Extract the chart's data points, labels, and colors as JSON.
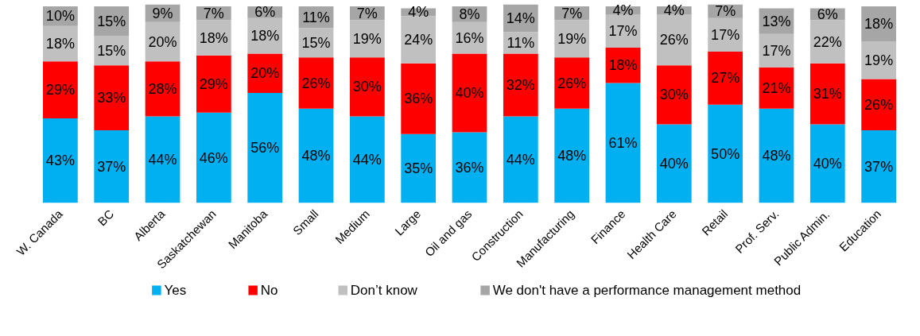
{
  "chart_data": {
    "type": "bar",
    "stacked": true,
    "legend": "bottom",
    "tick_labels": "x",
    "categories": [
      "W. Canada",
      "BC",
      "Alberta",
      "Saskatchewan",
      "Manitoba",
      "Small",
      "Medium",
      "Large",
      "Oil and gas",
      "Construction",
      "Manufacturing",
      "Finance",
      "Health Care",
      "Retail",
      "Prof. Serv.",
      "Public Admin.",
      "Education"
    ],
    "series": [
      {
        "name": "Yes",
        "color": "#00b0f0",
        "values": [
          43,
          37,
          44,
          46,
          56,
          48,
          44,
          35,
          36,
          44,
          48,
          61,
          40,
          50,
          48,
          40,
          37
        ],
        "value_labels": [
          "43%",
          "37%",
          "44%",
          "46%",
          "56%",
          "48%",
          "44%",
          "35%",
          "36%",
          "44%",
          "48%",
          "61%",
          "40%",
          "50%",
          "48%",
          "40%",
          "37%"
        ]
      },
      {
        "name": "No",
        "color": "#ff0000",
        "values": [
          29,
          33,
          28,
          29,
          20,
          26,
          30,
          36,
          40,
          32,
          26,
          18,
          30,
          27,
          21,
          31,
          26
        ],
        "value_labels": [
          "29%",
          "33%",
          "28%",
          "29%",
          "20%",
          "26%",
          "30%",
          "36%",
          "40%",
          "32%",
          "26%",
          "18%",
          "30%",
          "27%",
          "21%",
          "31%",
          "26%"
        ]
      },
      {
        "name": "Don’t know",
        "color": "#c0c0c0",
        "values": [
          18,
          15,
          20,
          18,
          18,
          15,
          19,
          24,
          16,
          11,
          19,
          17,
          26,
          17,
          17,
          22,
          19
        ],
        "value_labels": [
          "18%",
          "15%",
          "20%",
          "18%",
          "18%",
          "15%",
          "19%",
          "24%",
          "16%",
          "11%",
          "19%",
          "17%",
          "26%",
          "17%",
          "17%",
          "22%",
          "19%"
        ]
      },
      {
        "name": "We don't have a performance management method",
        "color": "#a6a6a6",
        "values": [
          10,
          15,
          9,
          7,
          6,
          11,
          7,
          4,
          8,
          14,
          7,
          4,
          4,
          7,
          13,
          6,
          18
        ],
        "value_labels": [
          "10%",
          "15%",
          "9%",
          "7%",
          "6%",
          "11%",
          "7%",
          "4%",
          "8%",
          "14%",
          "7%",
          "4%",
          "4%",
          "7%",
          "13%",
          "6%",
          "18%"
        ]
      }
    ]
  }
}
